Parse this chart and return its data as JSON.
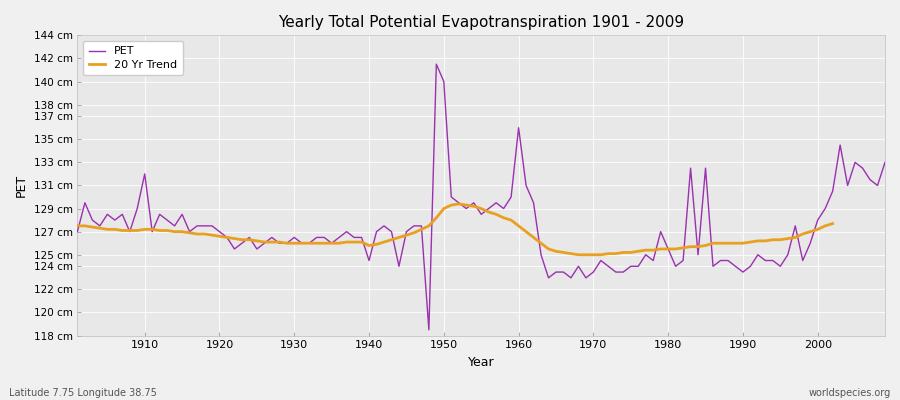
{
  "title": "Yearly Total Potential Evapotranspiration 1901 - 2009",
  "xlabel": "Year",
  "ylabel": "PET",
  "bottom_left_label": "Latitude 7.75 Longitude 38.75",
  "bottom_right_label": "worldspecies.org",
  "pet_color": "#9b30b0",
  "trend_color": "#e8a020",
  "background_color": "#f0f0f0",
  "plot_bg_color": "#e8e8e8",
  "grid_color": "#ffffff",
  "ylim": [
    118,
    144
  ],
  "yticks": [
    118,
    120,
    122,
    124,
    125,
    127,
    129,
    131,
    133,
    135,
    137,
    138,
    140,
    142,
    144
  ],
  "xlim": [
    1901,
    2009
  ],
  "xticks": [
    1910,
    1920,
    1930,
    1940,
    1950,
    1960,
    1970,
    1980,
    1990,
    2000
  ],
  "years": [
    1901,
    1902,
    1903,
    1904,
    1905,
    1906,
    1907,
    1908,
    1909,
    1910,
    1911,
    1912,
    1913,
    1914,
    1915,
    1916,
    1917,
    1918,
    1919,
    1920,
    1921,
    1922,
    1923,
    1924,
    1925,
    1926,
    1927,
    1928,
    1929,
    1930,
    1931,
    1932,
    1933,
    1934,
    1935,
    1936,
    1937,
    1938,
    1939,
    1940,
    1941,
    1942,
    1943,
    1944,
    1945,
    1946,
    1947,
    1948,
    1949,
    1950,
    1951,
    1952,
    1953,
    1954,
    1955,
    1956,
    1957,
    1958,
    1959,
    1960,
    1961,
    1962,
    1963,
    1964,
    1965,
    1966,
    1967,
    1968,
    1969,
    1970,
    1971,
    1972,
    1973,
    1974,
    1975,
    1976,
    1977,
    1978,
    1979,
    1980,
    1981,
    1982,
    1983,
    1984,
    1985,
    1986,
    1987,
    1988,
    1989,
    1990,
    1991,
    1992,
    1993,
    1994,
    1995,
    1996,
    1997,
    1998,
    1999,
    2000,
    2001,
    2002,
    2003,
    2004,
    2005,
    2006,
    2007,
    2008,
    2009
  ],
  "pet_values": [
    127.0,
    129.5,
    128.0,
    127.5,
    128.5,
    128.0,
    128.5,
    127.0,
    129.0,
    132.0,
    127.0,
    128.5,
    128.0,
    127.5,
    128.5,
    127.0,
    127.5,
    127.5,
    127.5,
    127.0,
    126.5,
    125.5,
    126.0,
    126.5,
    125.5,
    126.0,
    126.5,
    126.0,
    126.0,
    126.5,
    126.0,
    126.0,
    126.5,
    126.5,
    126.0,
    126.5,
    127.0,
    126.5,
    126.5,
    124.5,
    127.0,
    127.5,
    127.0,
    124.0,
    127.0,
    127.5,
    127.5,
    118.5,
    141.5,
    140.0,
    130.0,
    129.5,
    129.0,
    129.5,
    128.5,
    129.0,
    129.5,
    129.0,
    130.0,
    136.0,
    131.0,
    129.5,
    125.0,
    123.0,
    123.5,
    123.5,
    123.0,
    124.0,
    123.0,
    123.5,
    124.5,
    124.0,
    123.5,
    123.5,
    124.0,
    124.0,
    125.0,
    124.5,
    127.0,
    125.5,
    124.0,
    124.5,
    132.5,
    125.0,
    132.5,
    124.0,
    124.5,
    124.5,
    124.0,
    123.5,
    124.0,
    125.0,
    124.5,
    124.5,
    124.0,
    125.0,
    127.5,
    124.5,
    126.0,
    128.0,
    129.0,
    130.5,
    134.5,
    131.0,
    133.0,
    132.5,
    131.5,
    131.0,
    133.0
  ],
  "trend_values": [
    127.5,
    127.5,
    127.4,
    127.3,
    127.2,
    127.2,
    127.1,
    127.1,
    127.1,
    127.2,
    127.2,
    127.1,
    127.1,
    127.0,
    127.0,
    126.9,
    126.8,
    126.8,
    126.7,
    126.6,
    126.5,
    126.4,
    126.3,
    126.3,
    126.2,
    126.1,
    126.1,
    126.1,
    126.0,
    126.0,
    126.0,
    126.0,
    126.0,
    126.0,
    126.0,
    126.0,
    126.1,
    126.1,
    126.1,
    125.8,
    125.9,
    126.1,
    126.3,
    126.5,
    126.7,
    126.9,
    127.2,
    127.5,
    128.2,
    129.0,
    129.3,
    129.4,
    129.3,
    129.2,
    129.0,
    128.7,
    128.5,
    128.2,
    128.0,
    127.5,
    127.0,
    126.5,
    126.0,
    125.5,
    125.3,
    125.2,
    125.1,
    125.0,
    125.0,
    125.0,
    125.0,
    125.1,
    125.1,
    125.2,
    125.2,
    125.3,
    125.4,
    125.4,
    125.5,
    125.5,
    125.5,
    125.6,
    125.7,
    125.7,
    125.8,
    126.0,
    126.0,
    126.0,
    126.0,
    126.0,
    126.1,
    126.2,
    126.2,
    126.3,
    126.3,
    126.4,
    126.5,
    126.8,
    127.0,
    127.2,
    127.5,
    127.7,
    null,
    null,
    null,
    null,
    null,
    null,
    null
  ]
}
